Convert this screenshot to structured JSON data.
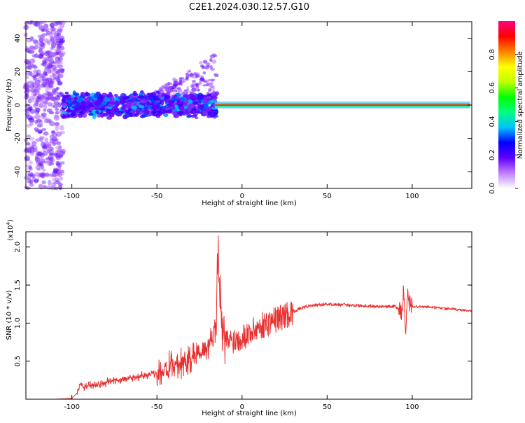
{
  "title": "C2E1.2024.030.12.57.G10",
  "chart_data": [
    {
      "type": "heatmap",
      "title": "C2E1.2024.030.12.57.G10",
      "xlabel": "Height of straight line (km)",
      "ylabel": "Frequency (Hz)",
      "xlim": [
        -127,
        135
      ],
      "ylim": [
        -50,
        50
      ],
      "xticks": [
        -100,
        -50,
        0,
        50,
        100
      ],
      "yticks": [
        -40,
        -20,
        0,
        20,
        40
      ],
      "colorbar": {
        "label": "Normalized spectral amplitude",
        "range": [
          0,
          1
        ],
        "ticks": [
          0.0,
          0.2,
          0.4,
          0.6,
          0.8
        ],
        "colors": [
          "#ffffff",
          "#c080ff",
          "#6000ff",
          "#0000ff",
          "#00c0ff",
          "#00ff80",
          "#00ff00",
          "#c0ff00",
          "#ffff00",
          "#ff8000",
          "#ff0000",
          "#ff0080"
        ]
      }
    },
    {
      "type": "line",
      "xlabel": "Height of straight line (km)",
      "ylabel": "SNR (10 * v/v)",
      "yscale_label": "(x10",
      "yscale_exp": "4",
      "yscale_close": ")",
      "xlim": [
        -127,
        135
      ],
      "ylim": [
        0,
        2.2
      ],
      "xticks": [
        -100,
        -50,
        0,
        50,
        100
      ],
      "yticks": [
        0.5,
        1.0,
        1.5,
        2.0
      ],
      "line_color": "#e83030",
      "series": [
        {
          "x": [
            -127,
            -110,
            -100,
            -97,
            -95,
            -93,
            -90,
            -80,
            -70,
            -60,
            -50,
            -40,
            -35,
            -30,
            -25,
            -20,
            -17,
            -15,
            -14,
            -12,
            -10,
            -5,
            0,
            5,
            10,
            20,
            30,
            35,
            40,
            50,
            60,
            70,
            80,
            90,
            94,
            95,
            96,
            97,
            98,
            100,
            110,
            120,
            130,
            135
          ],
          "y": [
            0.0,
            0.0,
            0.01,
            0.08,
            0.2,
            0.15,
            0.18,
            0.22,
            0.26,
            0.3,
            0.35,
            0.42,
            0.48,
            0.55,
            0.6,
            0.7,
            0.85,
            1.2,
            2.1,
            0.9,
            0.75,
            0.78,
            0.82,
            0.88,
            0.95,
            1.05,
            1.15,
            1.2,
            1.23,
            1.25,
            1.24,
            1.23,
            1.22,
            1.22,
            1.15,
            1.45,
            0.85,
            1.4,
            1.25,
            1.22,
            1.21,
            1.19,
            1.17,
            1.16
          ]
        }
      ]
    }
  ]
}
